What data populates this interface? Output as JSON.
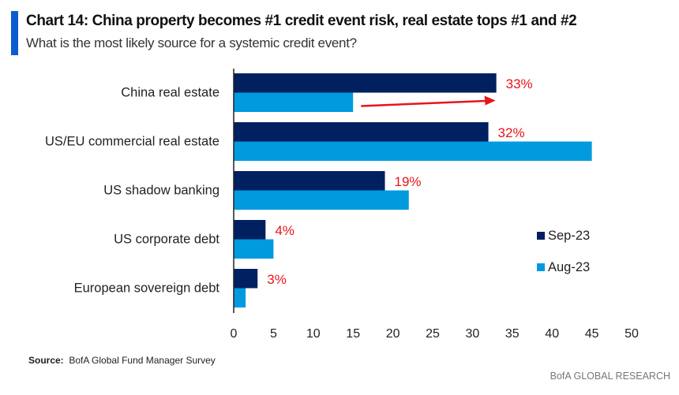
{
  "header": {
    "title": "Chart 14: China property becomes #1 credit event risk, real estate tops #1 and #2",
    "subtitle": "What is the most likely source for a systemic credit event?"
  },
  "footer": {
    "source_label": "Source:",
    "source_text": "BofA Global Fund Manager Survey",
    "brand": "BofA GLOBAL RESEARCH"
  },
  "colors": {
    "sep": "#00205f",
    "aug": "#009adf",
    "annotation": "#e8141b",
    "accent": "#0b5ccf"
  },
  "chart_data": {
    "type": "bar",
    "orientation": "horizontal",
    "title": "Chart 14: China property becomes #1 credit event risk, real estate tops #1 and #2",
    "subtitle": "What is the most likely source for a systemic credit event?",
    "categories": [
      "China real estate",
      "US/EU commercial real estate",
      "US shadow banking",
      "US corporate debt",
      "European sovereign debt"
    ],
    "series": [
      {
        "name": "Sep-23",
        "values": [
          33,
          32,
          19,
          4,
          3
        ]
      },
      {
        "name": "Aug-23",
        "values": [
          15,
          45,
          22,
          5,
          1.5
        ]
      }
    ],
    "data_labels": [
      "33%",
      "32%",
      "19%",
      "4%",
      "3%"
    ],
    "xlim": [
      0,
      50
    ],
    "xticks": [
      0,
      5,
      10,
      15,
      20,
      25,
      30,
      35,
      40,
      45,
      50
    ],
    "xlabel": "",
    "ylabel": "",
    "grid": false,
    "legend": {
      "position": "right",
      "entries": [
        "Sep-23",
        "Aug-23"
      ]
    },
    "annotations": [
      {
        "type": "arrow",
        "category": "China real estate",
        "from": 16,
        "to": 33
      }
    ]
  }
}
